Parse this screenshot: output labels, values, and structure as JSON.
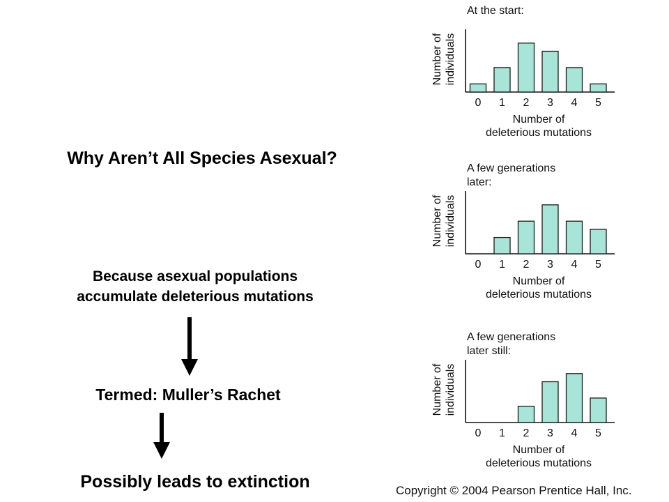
{
  "slide": {
    "title": "Why Aren’t All Species Asexual?",
    "explanation_line1": "Because asexual populations",
    "explanation_line2": "accumulate deleterious mutations",
    "termed": "Termed: Muller’s Rachet",
    "conclusion": "Possibly leads to extinction",
    "copyright": "Copyright © 2004 Pearson Prentice Hall, Inc."
  },
  "chart_data": [
    {
      "type": "bar",
      "title": [
        "At the start:"
      ],
      "categories": [
        "0",
        "1",
        "2",
        "3",
        "4",
        "5"
      ],
      "values": [
        1,
        3,
        6,
        5,
        3,
        1
      ],
      "xlabel": [
        "Number of",
        "deleterious mutations"
      ],
      "ylabel": [
        "Number of",
        "individuals"
      ],
      "ylim": [
        0,
        7
      ],
      "grid": false,
      "bar_color": "#a8e4d8"
    },
    {
      "type": "bar",
      "title": [
        "A few generations",
        "later:"
      ],
      "categories": [
        "0",
        "1",
        "2",
        "3",
        "4",
        "5"
      ],
      "values": [
        0,
        2,
        4,
        6,
        4,
        3
      ],
      "xlabel": [
        "Number of",
        "deleterious mutations"
      ],
      "ylabel": [
        "Number of",
        "individuals"
      ],
      "ylim": [
        0,
        7
      ],
      "grid": false,
      "bar_color": "#a8e4d8"
    },
    {
      "type": "bar",
      "title": [
        "A few generations",
        "later still:"
      ],
      "categories": [
        "0",
        "1",
        "2",
        "3",
        "4",
        "5"
      ],
      "values": [
        0,
        0,
        2,
        5,
        6,
        3
      ],
      "xlabel": [
        "Number of",
        "deleterious mutations"
      ],
      "ylabel": [
        "Number of",
        "individuals"
      ],
      "ylim": [
        0,
        7
      ],
      "grid": false,
      "bar_color": "#a8e4d8"
    }
  ]
}
